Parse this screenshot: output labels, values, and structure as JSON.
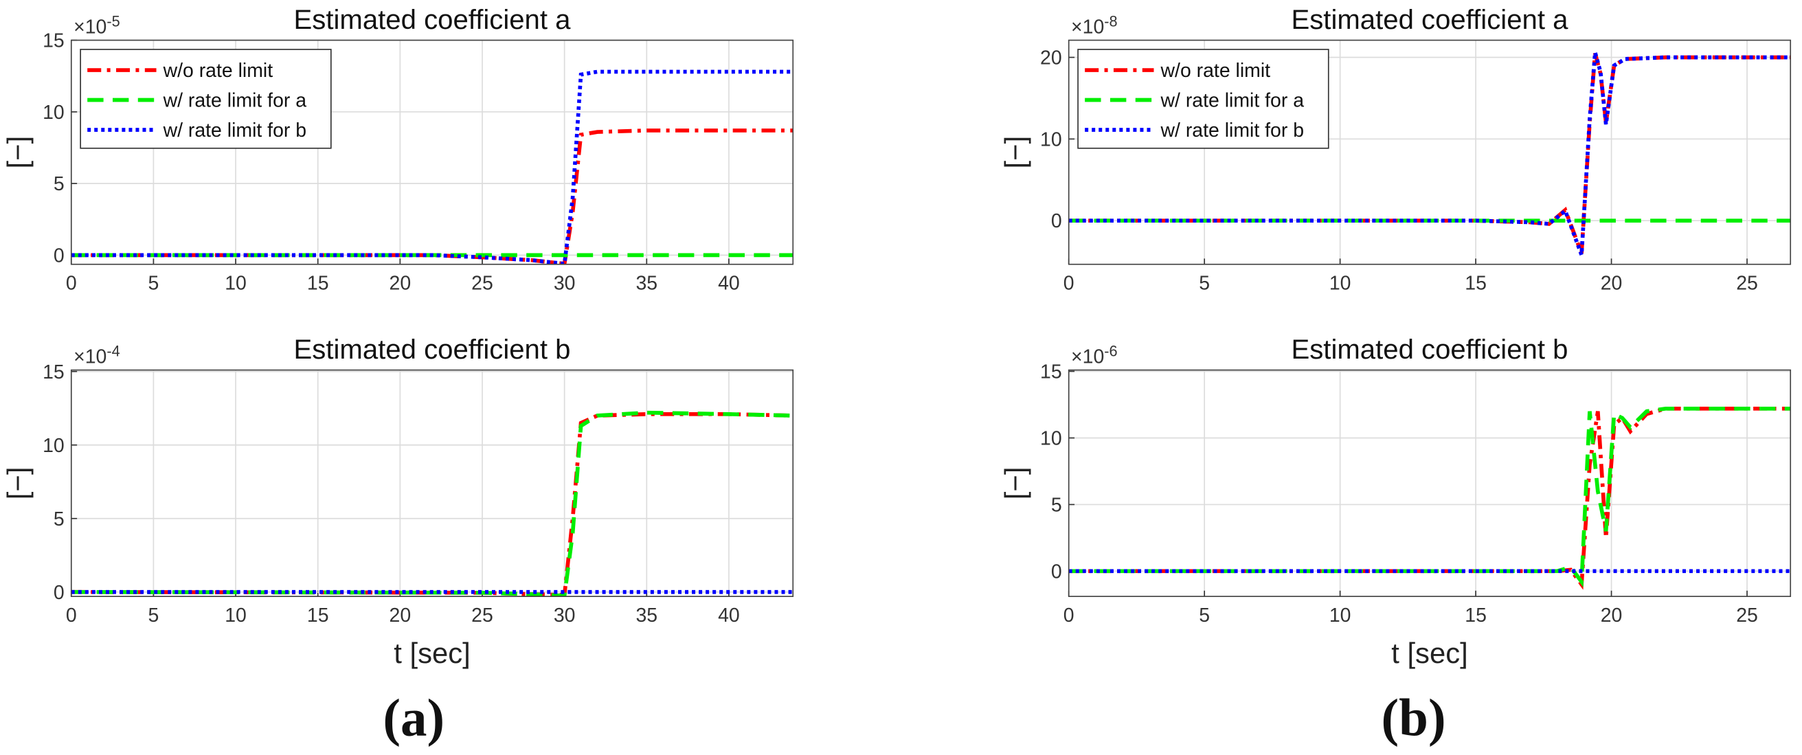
{
  "chart_data": [
    {
      "type": "line",
      "title": "Estimated coefficient a",
      "y_label": "[−]",
      "y_multiplier": {
        "base": "×10",
        "exponent": "-5"
      },
      "x": [
        0,
        22,
        25,
        28,
        30,
        30.5,
        31,
        32,
        35,
        40,
        43.9
      ],
      "series": [
        {
          "name": "w/o rate limit",
          "color": "#ff0000",
          "style": "dashdot",
          "values": [
            0,
            0,
            -0.15,
            -0.35,
            -0.6,
            3,
            8.4,
            8.6,
            8.7,
            8.7,
            8.7
          ]
        },
        {
          "name": "w/ rate limit for a",
          "color": "#00ee00",
          "style": "dashed",
          "values": [
            0,
            0,
            0,
            0,
            0,
            0,
            0,
            0,
            0,
            0,
            0
          ]
        },
        {
          "name": "w/ rate limit for b",
          "color": "#0000ff",
          "style": "dotted",
          "values": [
            0,
            0,
            -0.15,
            -0.35,
            -0.6,
            4,
            12.6,
            12.8,
            12.8,
            12.8,
            12.8
          ]
        }
      ],
      "xlim": [
        0,
        43.9
      ],
      "ylim": [
        -0.64,
        15
      ],
      "xticks": [
        0,
        5,
        10,
        15,
        20,
        25,
        30,
        35,
        40
      ],
      "yticks": [
        0,
        5,
        10,
        15
      ],
      "grid": true,
      "legend": "upper-left"
    },
    {
      "type": "line",
      "title": "Estimated coefficient b",
      "y_label": "[−]",
      "x_label": "t [sec]",
      "y_multiplier": {
        "base": "×10",
        "exponent": "-4"
      },
      "x": [
        0,
        25,
        28,
        30,
        30.5,
        31,
        32,
        35,
        40,
        43.9
      ],
      "series": [
        {
          "color": "#ff0000",
          "style": "dashdot",
          "values": [
            0,
            -0.05,
            -0.15,
            -0.2,
            5,
            11.5,
            12,
            12.1,
            12.1,
            12.0
          ]
        },
        {
          "color": "#00ee00",
          "style": "dashed",
          "values": [
            0,
            -0.05,
            -0.15,
            -0.25,
            4,
            11.3,
            12,
            12.2,
            12.1,
            12.0
          ]
        },
        {
          "color": "#0000ff",
          "style": "dotted",
          "values": [
            0,
            0,
            0,
            0,
            0,
            0,
            0,
            0,
            0,
            0
          ]
        }
      ],
      "xlim": [
        0,
        43.9
      ],
      "ylim": [
        -0.3,
        15.1
      ],
      "xticks": [
        0,
        5,
        10,
        15,
        20,
        25,
        30,
        35,
        40
      ],
      "yticks": [
        0,
        5,
        10,
        15
      ],
      "grid": true
    },
    {
      "type": "line",
      "title": "Estimated coefficient a",
      "y_label": "[−]",
      "y_multiplier": {
        "base": "×10",
        "exponent": "-8"
      },
      "x": [
        0,
        15,
        17,
        17.7,
        18.3,
        18.9,
        19.2,
        19.4,
        19.6,
        19.8,
        20.1,
        20.5,
        22,
        26.6
      ],
      "series": [
        {
          "name": "w/o rate limit",
          "color": "#ff0000",
          "style": "dashdot",
          "values": [
            0,
            0,
            -0.2,
            -0.4,
            1.3,
            -4,
            12,
            20.5,
            18,
            12,
            19,
            19.8,
            20,
            20
          ]
        },
        {
          "name": "w/ rate limit for a",
          "color": "#00ee00",
          "style": "dashed",
          "values": [
            0,
            0,
            0,
            0,
            0,
            0,
            0,
            0,
            0,
            0,
            0,
            0,
            0,
            0
          ]
        },
        {
          "name": "w/ rate limit for b",
          "color": "#0000ff",
          "style": "dotted",
          "values": [
            0,
            0,
            -0.2,
            -0.4,
            1.2,
            -4.2,
            12.5,
            20.6,
            18.2,
            11.8,
            19,
            19.8,
            20,
            20
          ]
        }
      ],
      "xlim": [
        0,
        26.6
      ],
      "ylim": [
        -5.35,
        22.1
      ],
      "xticks": [
        0,
        5,
        10,
        15,
        20,
        25
      ],
      "yticks": [
        0,
        10,
        20
      ],
      "grid": true,
      "legend": "upper-left"
    },
    {
      "type": "line",
      "title": "Estimated coefficient b",
      "y_label": "[−]",
      "x_label": "t [sec]",
      "y_multiplier": {
        "base": "×10",
        "exponent": "-6"
      },
      "x": [
        0,
        18,
        18.5,
        18.9,
        19.2,
        19.5,
        19.8,
        20.1,
        20.4,
        20.7,
        21.3,
        22,
        26.6
      ],
      "series": [
        {
          "color": "#ff0000",
          "style": "dashdot",
          "values": [
            0,
            0,
            0.1,
            -1,
            8,
            12,
            2.5,
            11,
            11.5,
            10.5,
            11.8,
            12.2,
            12.2
          ]
        },
        {
          "color": "#00ee00",
          "style": "dashed",
          "values": [
            0,
            0,
            0.3,
            -0.8,
            12,
            6,
            3,
            11.8,
            11.5,
            10.8,
            12,
            12.2,
            12.2
          ]
        },
        {
          "color": "#0000ff",
          "style": "dotted",
          "values": [
            0,
            0,
            0,
            0,
            0,
            0,
            0,
            0,
            0,
            0,
            0,
            0,
            0
          ]
        }
      ],
      "xlim": [
        0,
        26.6
      ],
      "ylim": [
        -1.9,
        15.1
      ],
      "xticks": [
        0,
        5,
        10,
        15,
        20,
        25
      ],
      "yticks": [
        0,
        5,
        10,
        15
      ],
      "grid": true
    }
  ],
  "captions": [
    "(a)",
    "(b)"
  ]
}
